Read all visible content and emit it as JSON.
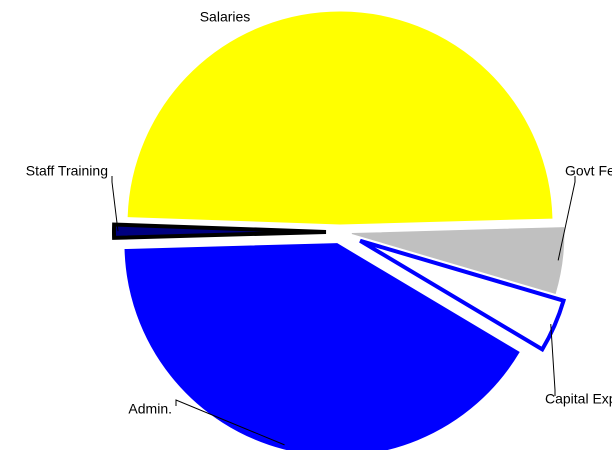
{
  "chart_data": {
    "type": "pie",
    "categories": [
      "Salaries",
      "Govt Fees",
      "Capital Exp.",
      "Admin.",
      "Staff Training"
    ],
    "values": [
      49,
      5,
      4,
      41,
      1
    ],
    "colors": [
      "#ffff00",
      "#c0c0c0",
      "#ffffff",
      "#0000ff",
      "#000080"
    ],
    "edgecolors": [
      "#ffff00",
      "#c0c0c0",
      "#0000ff",
      "#0000ff",
      "#000000"
    ]
  }
}
